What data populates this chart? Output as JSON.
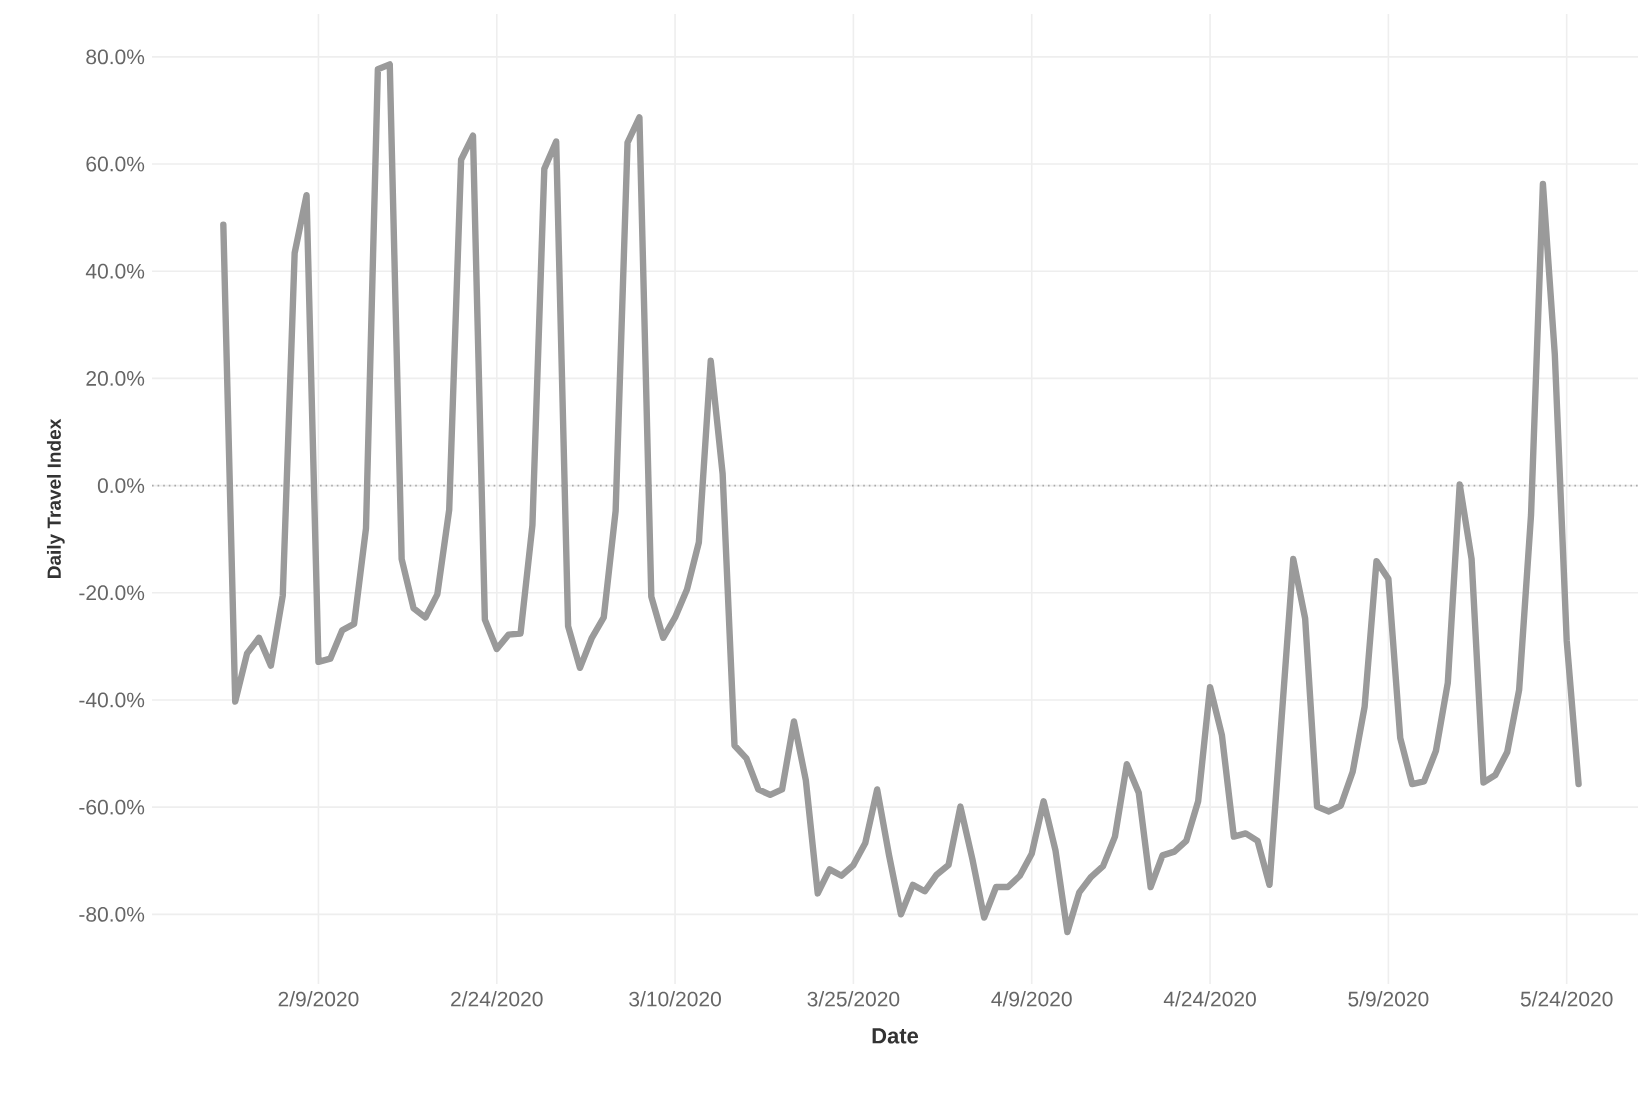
{
  "chart_data": {
    "type": "line",
    "xlabel": "Date",
    "ylabel": "Daily Travel Index",
    "x": [
      "2020-02-01",
      "2020-02-02",
      "2020-02-03",
      "2020-02-04",
      "2020-02-05",
      "2020-02-06",
      "2020-02-07",
      "2020-02-08",
      "2020-02-09",
      "2020-02-10",
      "2020-02-11",
      "2020-02-12",
      "2020-02-13",
      "2020-02-14",
      "2020-02-15",
      "2020-02-16",
      "2020-02-17",
      "2020-02-18",
      "2020-02-19",
      "2020-02-20",
      "2020-02-21",
      "2020-02-22",
      "2020-02-23",
      "2020-02-24",
      "2020-02-25",
      "2020-02-26",
      "2020-02-27",
      "2020-02-28",
      "2020-02-29",
      "2020-03-01",
      "2020-03-02",
      "2020-03-03",
      "2020-03-04",
      "2020-03-05",
      "2020-03-06",
      "2020-03-07",
      "2020-03-08",
      "2020-03-09",
      "2020-03-10",
      "2020-03-11",
      "2020-03-12",
      "2020-03-13",
      "2020-03-14",
      "2020-03-15",
      "2020-03-16",
      "2020-03-17",
      "2020-03-18",
      "2020-03-19",
      "2020-03-20",
      "2020-03-21",
      "2020-03-22",
      "2020-03-23",
      "2020-03-24",
      "2020-03-25",
      "2020-03-26",
      "2020-03-27",
      "2020-03-28",
      "2020-03-29",
      "2020-03-30",
      "2020-03-31",
      "2020-04-01",
      "2020-04-02",
      "2020-04-03",
      "2020-04-04",
      "2020-04-05",
      "2020-04-06",
      "2020-04-07",
      "2020-04-08",
      "2020-04-09",
      "2020-04-10",
      "2020-04-11",
      "2020-04-12",
      "2020-04-13",
      "2020-04-14",
      "2020-04-15",
      "2020-04-16",
      "2020-04-17",
      "2020-04-18",
      "2020-04-19",
      "2020-04-20",
      "2020-04-21",
      "2020-04-22",
      "2020-04-23",
      "2020-04-24",
      "2020-04-25",
      "2020-04-26",
      "2020-04-27",
      "2020-04-28",
      "2020-04-29",
      "2020-04-30",
      "2020-05-01",
      "2020-05-02",
      "2020-05-03",
      "2020-05-04",
      "2020-05-05",
      "2020-05-06",
      "2020-05-07",
      "2020-05-08",
      "2020-05-09",
      "2020-05-10",
      "2020-05-11",
      "2020-05-12",
      "2020-05-13",
      "2020-05-14",
      "2020-05-15",
      "2020-05-16",
      "2020-05-17",
      "2020-05-18",
      "2020-05-19",
      "2020-05-20",
      "2020-05-21",
      "2020-05-22",
      "2020-05-23",
      "2020-05-24",
      "2020-05-25"
    ],
    "series": [
      {
        "color": "#9a9a9a",
        "values": [
          48.7,
          -40.3,
          -31.3,
          -28.4,
          -33.6,
          -20.5,
          43.4,
          54.2,
          -32.9,
          -32.3,
          -27.0,
          -25.8,
          -8.0,
          77.7,
          78.6,
          -13.7,
          -22.9,
          -24.6,
          -20.3,
          -4.5,
          60.8,
          65.3,
          -25.0,
          -30.5,
          -27.8,
          -27.6,
          -7.4,
          59.1,
          64.2,
          -26.2,
          -34.0,
          -28.4,
          -24.6,
          -4.7,
          64.0,
          68.7,
          -20.7,
          -28.4,
          -24.6,
          -19.4,
          -10.6,
          23.3,
          2.2,
          -48.5,
          -50.9,
          -56.7,
          -57.7,
          -56.7,
          -44.0,
          -55.0,
          -76.1,
          -71.6,
          -72.8,
          -70.8,
          -66.7,
          -56.7,
          -69.0,
          -80.0,
          -74.5,
          -75.7,
          -72.6,
          -70.8,
          -59.9,
          -69.6,
          -80.6,
          -74.9,
          -74.9,
          -72.8,
          -68.7,
          -58.9,
          -68.1,
          -83.3,
          -75.9,
          -73.0,
          -71.0,
          -65.5,
          -52.0,
          -57.3,
          -74.9,
          -69.0,
          -68.3,
          -66.3,
          -58.9,
          -37.6,
          -46.6,
          -65.5,
          -64.9,
          -66.3,
          -74.5,
          -44.0,
          -13.7,
          -24.8,
          -59.9,
          -60.8,
          -59.7,
          -53.4,
          -41.3,
          -14.1,
          -17.4,
          -47.1,
          -55.7,
          -55.2,
          -49.5,
          -36.8,
          0.2,
          -13.7,
          -55.4,
          -54.0,
          -49.7,
          -38.1,
          -5.5,
          56.3,
          24.5,
          -28.9,
          -55.7
        ]
      }
    ],
    "xlim": [
      "2020-01-26",
      "2020-05-30"
    ],
    "xticks": [
      {
        "value": "2020-02-09",
        "label": "2/9/2020"
      },
      {
        "value": "2020-02-24",
        "label": "2/24/2020"
      },
      {
        "value": "2020-03-10",
        "label": "3/10/2020"
      },
      {
        "value": "2020-03-25",
        "label": "3/25/2020"
      },
      {
        "value": "2020-04-09",
        "label": "4/9/2020"
      },
      {
        "value": "2020-04-24",
        "label": "4/24/2020"
      },
      {
        "value": "2020-05-09",
        "label": "5/9/2020"
      },
      {
        "value": "2020-05-24",
        "label": "5/24/2020"
      }
    ],
    "ylim": [
      -93,
      88
    ],
    "yticks": [
      {
        "value": -80,
        "label": "-80.0%"
      },
      {
        "value": -60,
        "label": "-60.0%"
      },
      {
        "value": -40,
        "label": "-40.0%"
      },
      {
        "value": -20,
        "label": "-20.0%"
      },
      {
        "value": 0,
        "label": "0.0%"
      },
      {
        "value": 20,
        "label": "20.0%"
      },
      {
        "value": 40,
        "label": "40.0%"
      },
      {
        "value": 60,
        "label": "60.0%"
      },
      {
        "value": 80,
        "label": "80.0%"
      }
    ],
    "ref_lines": [
      {
        "axis": "y",
        "value": 0,
        "color": "#aaaaaa",
        "line_style": "dotted"
      }
    ],
    "grid": true
  }
}
